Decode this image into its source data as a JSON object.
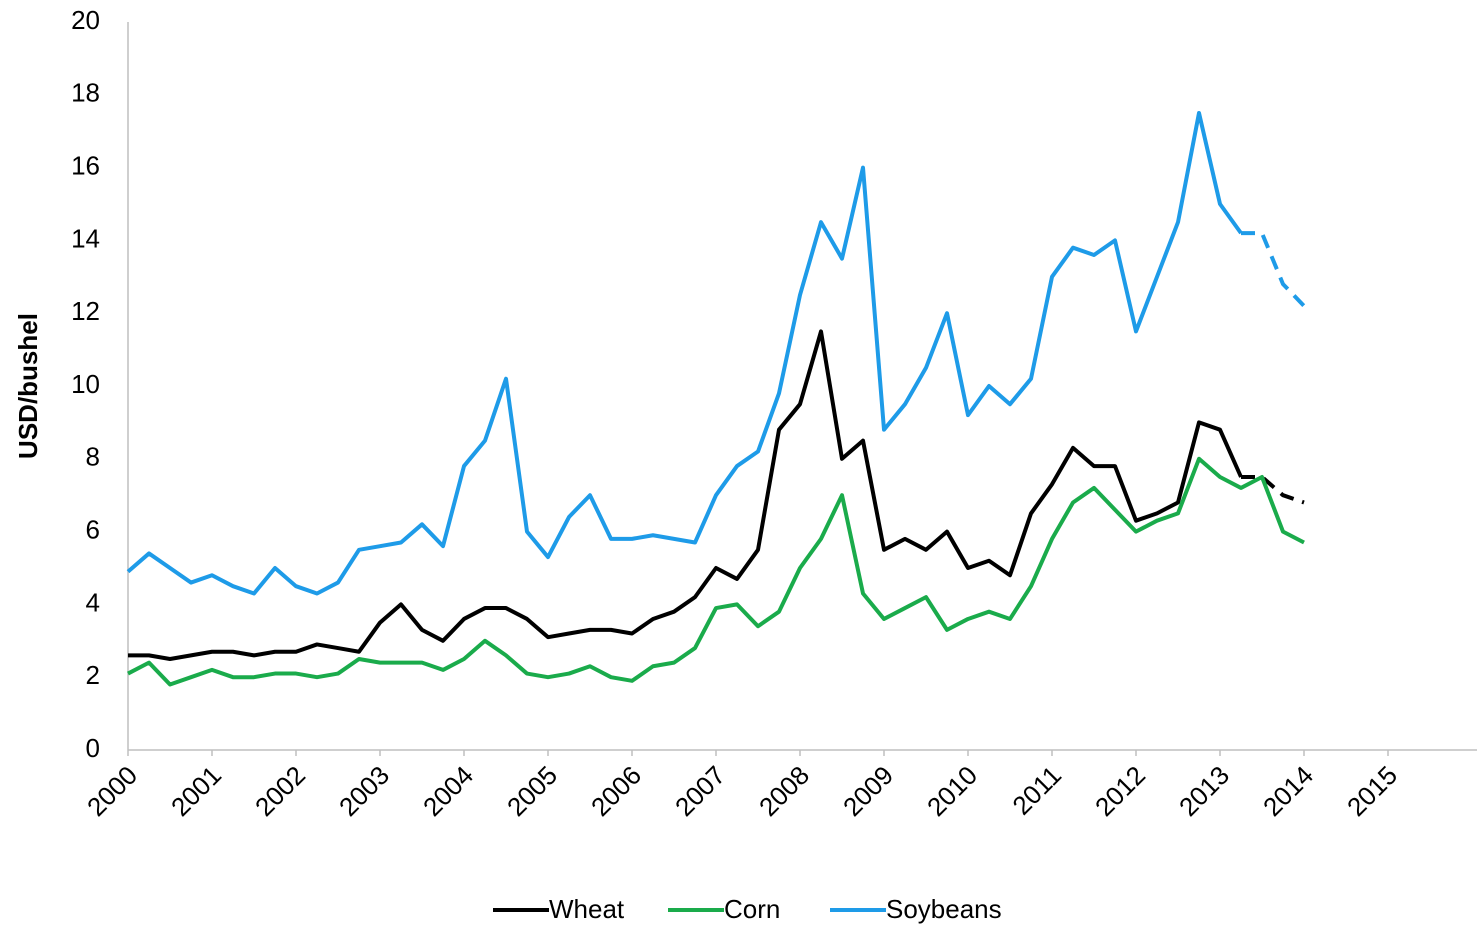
{
  "chart_data": {
    "type": "line",
    "y_label": "USD/bushel",
    "x": [
      2000,
      2000.25,
      2000.5,
      2000.75,
      2001,
      2001.25,
      2001.5,
      2001.75,
      2002,
      2002.25,
      2002.5,
      2002.75,
      2003,
      2003.25,
      2003.5,
      2003.75,
      2004,
      2004.25,
      2004.5,
      2004.75,
      2005,
      2005.25,
      2005.5,
      2005.75,
      2006,
      2006.25,
      2006.5,
      2006.75,
      2007,
      2007.25,
      2007.5,
      2007.75,
      2008,
      2008.25,
      2008.5,
      2008.75,
      2009,
      2009.25,
      2009.5,
      2009.75,
      2010,
      2010.25,
      2010.5,
      2010.75,
      2011,
      2011.25,
      2011.5,
      2011.75,
      2012,
      2012.25,
      2012.5,
      2012.75,
      2013,
      2013.25,
      2013.5,
      2013.75,
      2014
    ],
    "series": [
      {
        "name": "Wheat",
        "color": "#000000",
        "dash_from": 2013.25,
        "values": [
          2.6,
          2.6,
          2.5,
          2.6,
          2.7,
          2.7,
          2.6,
          2.7,
          2.7,
          2.9,
          2.8,
          2.7,
          3.5,
          4.0,
          3.3,
          3.0,
          3.6,
          3.9,
          3.9,
          3.6,
          3.1,
          3.2,
          3.3,
          3.3,
          3.2,
          3.6,
          3.8,
          4.2,
          5.0,
          4.7,
          5.5,
          8.8,
          9.5,
          11.5,
          8.0,
          8.5,
          5.5,
          5.8,
          5.5,
          6.0,
          5.0,
          5.2,
          4.8,
          6.5,
          7.3,
          8.3,
          7.8,
          7.8,
          6.3,
          6.5,
          6.8,
          9.0,
          8.8,
          7.5,
          7.5,
          7.0,
          6.8
        ]
      },
      {
        "name": "Corn",
        "color": "#1aab4b",
        "values": [
          2.1,
          2.4,
          1.8,
          2.0,
          2.2,
          2.0,
          2.0,
          2.1,
          2.1,
          2.0,
          2.1,
          2.5,
          2.4,
          2.4,
          2.4,
          2.2,
          2.5,
          3.0,
          2.6,
          2.1,
          2.0,
          2.1,
          2.3,
          2.0,
          1.9,
          2.3,
          2.4,
          2.8,
          3.9,
          4.0,
          3.4,
          3.8,
          5.0,
          5.8,
          7.0,
          4.3,
          3.6,
          3.9,
          4.2,
          3.3,
          3.6,
          3.8,
          3.6,
          4.5,
          5.8,
          6.8,
          7.2,
          6.6,
          6.0,
          6.3,
          6.5,
          8.0,
          7.5,
          7.2,
          7.5,
          6.0,
          5.7
        ]
      },
      {
        "name": "Soybeans",
        "color": "#1e9be8",
        "dash_from": 2013.25,
        "values": [
          4.9,
          5.4,
          5.0,
          4.6,
          4.8,
          4.5,
          4.3,
          5.0,
          4.5,
          4.3,
          4.6,
          5.5,
          5.6,
          5.7,
          6.2,
          5.6,
          7.8,
          8.5,
          10.2,
          6.0,
          5.3,
          6.4,
          7.0,
          5.8,
          5.8,
          5.9,
          5.8,
          5.7,
          7.0,
          7.8,
          8.2,
          9.8,
          12.5,
          14.5,
          13.5,
          16.0,
          8.8,
          9.5,
          10.5,
          12.0,
          9.2,
          10.0,
          9.5,
          10.2,
          13.0,
          13.8,
          13.6,
          14.0,
          11.5,
          13.0,
          14.5,
          17.5,
          15.0,
          14.2,
          14.2,
          12.8,
          12.2
        ]
      }
    ],
    "xlim": [
      2000,
      2016
    ],
    "xticks": [
      2000,
      2001,
      2002,
      2003,
      2004,
      2005,
      2006,
      2007,
      2008,
      2009,
      2010,
      2011,
      2012,
      2013,
      2014,
      2015
    ],
    "ylim": [
      0,
      20
    ],
    "yticks": [
      0,
      2,
      4,
      6,
      8,
      10,
      12,
      14,
      16,
      18,
      20
    ],
    "grid": false,
    "legend": "bottom"
  }
}
